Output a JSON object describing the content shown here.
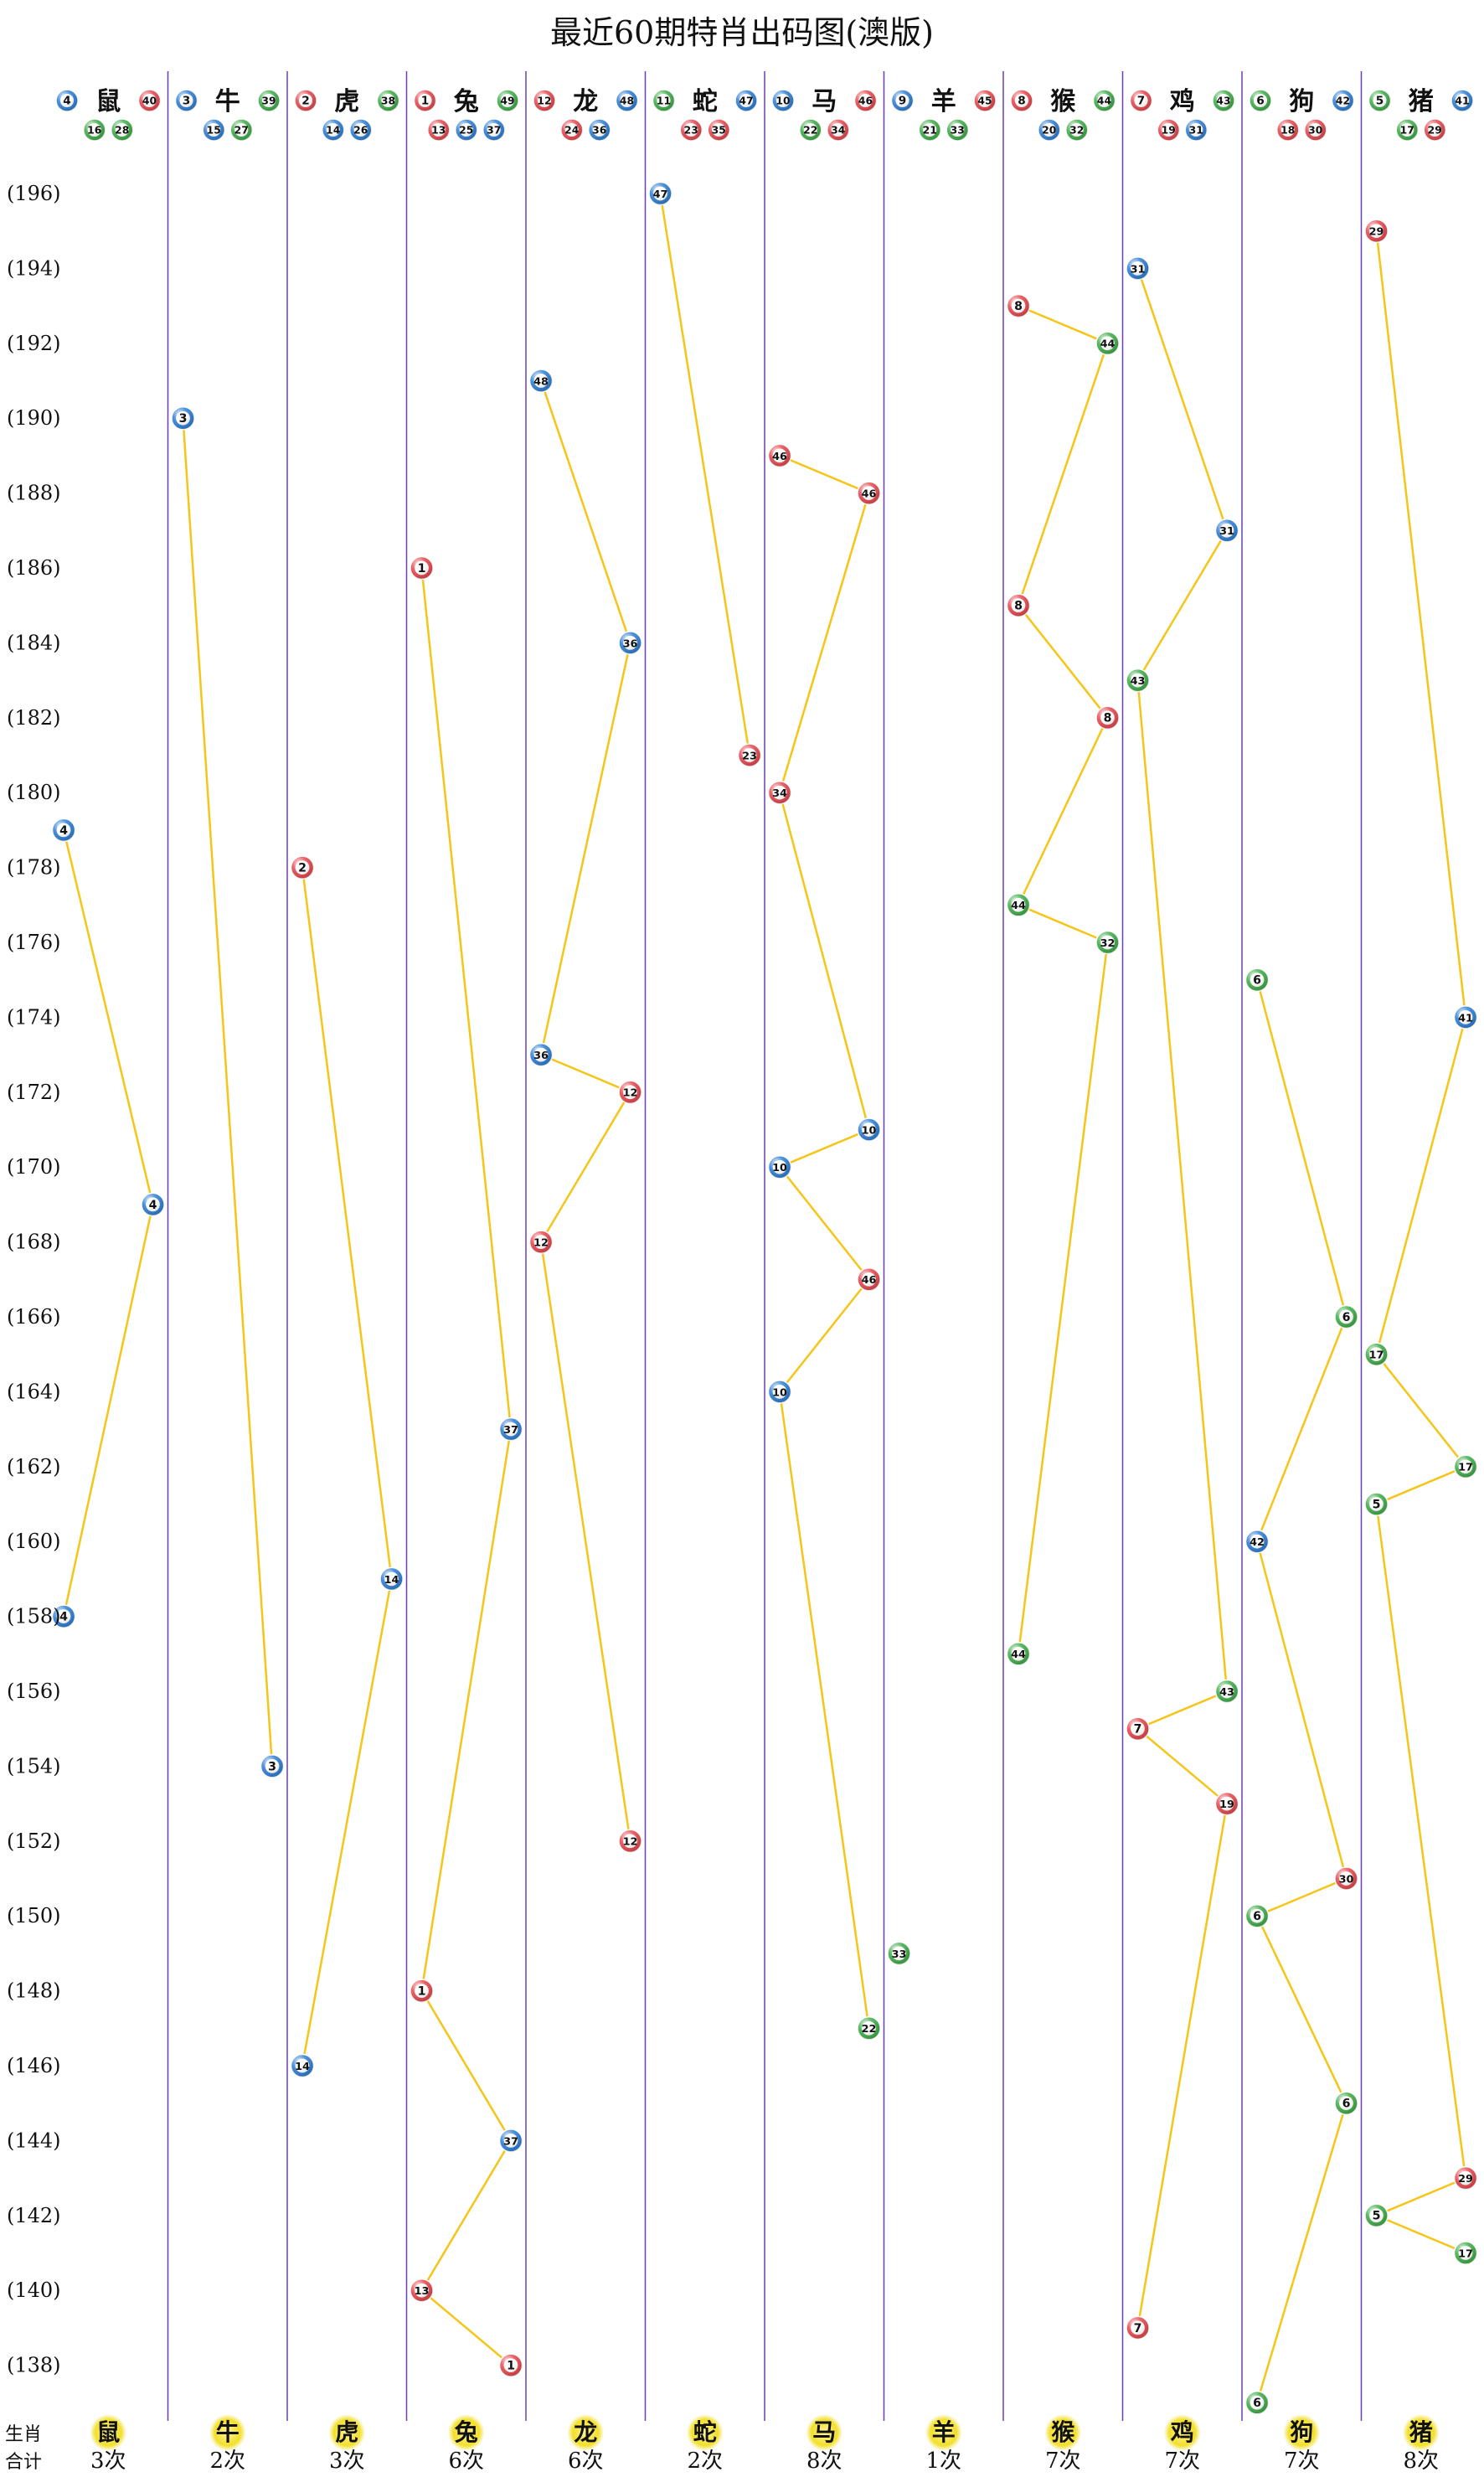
{
  "chart_data": {
    "type": "scatter",
    "title": "最近60期特肖出码图(澳版)",
    "ylim": [
      137,
      197
    ],
    "y_ticks": [
      "(196)",
      "(194)",
      "(192)",
      "(190)",
      "(188)",
      "(186)",
      "(184)",
      "(182)",
      "(180)",
      "(178)",
      "(176)",
      "(174)",
      "(172)",
      "(170)",
      "(168)",
      "(166)",
      "(164)",
      "(162)",
      "(160)",
      "(158)",
      "(156)",
      "(154)",
      "(152)",
      "(150)",
      "(148)",
      "(146)",
      "(144)",
      "(142)",
      "(140)",
      "(138)"
    ],
    "footer": {
      "row1_label": "生肖",
      "row2_label": "合计"
    },
    "ball_colors": {
      "red": "#e8474f",
      "blue": "#2e7fd6",
      "green": "#3fae49"
    },
    "line_color": "#f5c518",
    "divider_color": "#6a3fb3",
    "columns": [
      {
        "zodiac": "鼠",
        "count": "3次",
        "header_top": [
          {
            "n": "4",
            "c": "blue"
          },
          {
            "n": "40",
            "c": "red"
          }
        ],
        "header_bottom": [
          {
            "n": "16",
            "c": "green"
          },
          {
            "n": "28",
            "c": "green"
          }
        ],
        "points": [
          {
            "period": 179,
            "n": "4",
            "c": "blue"
          },
          {
            "period": 169,
            "n": "4",
            "c": "blue"
          },
          {
            "period": 158,
            "n": "4",
            "c": "blue"
          }
        ]
      },
      {
        "zodiac": "牛",
        "count": "2次",
        "header_top": [
          {
            "n": "3",
            "c": "blue"
          },
          {
            "n": "39",
            "c": "green"
          }
        ],
        "header_bottom": [
          {
            "n": "15",
            "c": "blue"
          },
          {
            "n": "27",
            "c": "green"
          }
        ],
        "points": [
          {
            "period": 190,
            "n": "3",
            "c": "blue"
          },
          {
            "period": 154,
            "n": "3",
            "c": "blue"
          }
        ]
      },
      {
        "zodiac": "虎",
        "count": "3次",
        "header_top": [
          {
            "n": "2",
            "c": "red"
          },
          {
            "n": "38",
            "c": "green"
          }
        ],
        "header_bottom": [
          {
            "n": "14",
            "c": "blue"
          },
          {
            "n": "26",
            "c": "blue"
          }
        ],
        "points": [
          {
            "period": 178,
            "n": "2",
            "c": "red"
          },
          {
            "period": 159,
            "n": "14",
            "c": "blue"
          },
          {
            "period": 146,
            "n": "14",
            "c": "blue"
          }
        ]
      },
      {
        "zodiac": "兔",
        "count": "6次",
        "header_top": [
          {
            "n": "1",
            "c": "red"
          },
          {
            "n": "49",
            "c": "green"
          }
        ],
        "header_bottom": [
          {
            "n": "13",
            "c": "red"
          },
          {
            "n": "25",
            "c": "blue"
          },
          {
            "n": "37",
            "c": "blue"
          }
        ],
        "points": [
          {
            "period": 186,
            "n": "1",
            "c": "red"
          },
          {
            "period": 163,
            "n": "37",
            "c": "blue"
          },
          {
            "period": 148,
            "n": "1",
            "c": "red"
          },
          {
            "period": 144,
            "n": "37",
            "c": "blue"
          },
          {
            "period": 140,
            "n": "13",
            "c": "red"
          },
          {
            "period": 138,
            "n": "1",
            "c": "red"
          }
        ]
      },
      {
        "zodiac": "龙",
        "count": "6次",
        "header_top": [
          {
            "n": "12",
            "c": "red"
          },
          {
            "n": "48",
            "c": "blue"
          }
        ],
        "header_bottom": [
          {
            "n": "24",
            "c": "red"
          },
          {
            "n": "36",
            "c": "blue"
          }
        ],
        "points": [
          {
            "period": 191,
            "n": "48",
            "c": "blue"
          },
          {
            "period": 184,
            "n": "36",
            "c": "blue"
          },
          {
            "period": 173,
            "n": "36",
            "c": "blue"
          },
          {
            "period": 172,
            "n": "12",
            "c": "red"
          },
          {
            "period": 168,
            "n": "12",
            "c": "red"
          },
          {
            "period": 152,
            "n": "12",
            "c": "red"
          }
        ]
      },
      {
        "zodiac": "蛇",
        "count": "2次",
        "header_top": [
          {
            "n": "11",
            "c": "green"
          },
          {
            "n": "47",
            "c": "blue"
          }
        ],
        "header_bottom": [
          {
            "n": "23",
            "c": "red"
          },
          {
            "n": "35",
            "c": "red"
          }
        ],
        "points": [
          {
            "period": 196,
            "n": "47",
            "c": "blue"
          },
          {
            "period": 181,
            "n": "23",
            "c": "red"
          }
        ]
      },
      {
        "zodiac": "马",
        "count": "8次",
        "header_top": [
          {
            "n": "10",
            "c": "blue"
          },
          {
            "n": "46",
            "c": "red"
          }
        ],
        "header_bottom": [
          {
            "n": "22",
            "c": "green"
          },
          {
            "n": "34",
            "c": "red"
          }
        ],
        "points": [
          {
            "period": 189,
            "n": "46",
            "c": "red"
          },
          {
            "period": 188,
            "n": "46",
            "c": "red"
          },
          {
            "period": 180,
            "n": "34",
            "c": "red"
          },
          {
            "period": 171,
            "n": "10",
            "c": "blue"
          },
          {
            "period": 170,
            "n": "10",
            "c": "blue"
          },
          {
            "period": 167,
            "n": "46",
            "c": "red"
          },
          {
            "period": 164,
            "n": "10",
            "c": "blue"
          },
          {
            "period": 147,
            "n": "22",
            "c": "green"
          }
        ]
      },
      {
        "zodiac": "羊",
        "count": "1次",
        "header_top": [
          {
            "n": "9",
            "c": "blue"
          },
          {
            "n": "45",
            "c": "red"
          }
        ],
        "header_bottom": [
          {
            "n": "21",
            "c": "green"
          },
          {
            "n": "33",
            "c": "green"
          }
        ],
        "points": [
          {
            "period": 149,
            "n": "33",
            "c": "green"
          }
        ]
      },
      {
        "zodiac": "猴",
        "count": "7次",
        "header_top": [
          {
            "n": "8",
            "c": "red"
          },
          {
            "n": "44",
            "c": "green"
          }
        ],
        "header_bottom": [
          {
            "n": "20",
            "c": "blue"
          },
          {
            "n": "32",
            "c": "green"
          }
        ],
        "points": [
          {
            "period": 193,
            "n": "8",
            "c": "red"
          },
          {
            "period": 192,
            "n": "44",
            "c": "green"
          },
          {
            "period": 185,
            "n": "8",
            "c": "red"
          },
          {
            "period": 182,
            "n": "8",
            "c": "red"
          },
          {
            "period": 177,
            "n": "44",
            "c": "green"
          },
          {
            "period": 176,
            "n": "32",
            "c": "green"
          },
          {
            "period": 157,
            "n": "44",
            "c": "green"
          }
        ]
      },
      {
        "zodiac": "鸡",
        "count": "7次",
        "header_top": [
          {
            "n": "7",
            "c": "red"
          },
          {
            "n": "43",
            "c": "green"
          }
        ],
        "header_bottom": [
          {
            "n": "19",
            "c": "red"
          },
          {
            "n": "31",
            "c": "blue"
          }
        ],
        "points": [
          {
            "period": 194,
            "n": "31",
            "c": "blue"
          },
          {
            "period": 187,
            "n": "31",
            "c": "blue"
          },
          {
            "period": 183,
            "n": "43",
            "c": "green"
          },
          {
            "period": 156,
            "n": "43",
            "c": "green"
          },
          {
            "period": 155,
            "n": "7",
            "c": "red"
          },
          {
            "period": 153,
            "n": "19",
            "c": "red"
          },
          {
            "period": 139,
            "n": "7",
            "c": "red"
          }
        ]
      },
      {
        "zodiac": "狗",
        "count": "7次",
        "header_top": [
          {
            "n": "6",
            "c": "green"
          },
          {
            "n": "42",
            "c": "blue"
          }
        ],
        "header_bottom": [
          {
            "n": "18",
            "c": "red"
          },
          {
            "n": "30",
            "c": "red"
          }
        ],
        "points": [
          {
            "period": 175,
            "n": "6",
            "c": "green"
          },
          {
            "period": 166,
            "n": "6",
            "c": "green"
          },
          {
            "period": 160,
            "n": "42",
            "c": "blue"
          },
          {
            "period": 151,
            "n": "30",
            "c": "red"
          },
          {
            "period": 150,
            "n": "6",
            "c": "green"
          },
          {
            "period": 145,
            "n": "6",
            "c": "green"
          },
          {
            "period": 137,
            "n": "6",
            "c": "green"
          }
        ]
      },
      {
        "zodiac": "猪",
        "count": "8次",
        "header_top": [
          {
            "n": "5",
            "c": "green"
          },
          {
            "n": "41",
            "c": "blue"
          }
        ],
        "header_bottom": [
          {
            "n": "17",
            "c": "green"
          },
          {
            "n": "29",
            "c": "red"
          }
        ],
        "points": [
          {
            "period": 195,
            "n": "29",
            "c": "red"
          },
          {
            "period": 174,
            "n": "41",
            "c": "blue"
          },
          {
            "period": 165,
            "n": "17",
            "c": "green"
          },
          {
            "period": 162,
            "n": "17",
            "c": "green"
          },
          {
            "period": 161,
            "n": "5",
            "c": "green"
          },
          {
            "period": 143,
            "n": "29",
            "c": "red"
          },
          {
            "period": 142,
            "n": "5",
            "c": "green"
          },
          {
            "period": 141,
            "n": "17",
            "c": "green"
          }
        ]
      }
    ]
  }
}
